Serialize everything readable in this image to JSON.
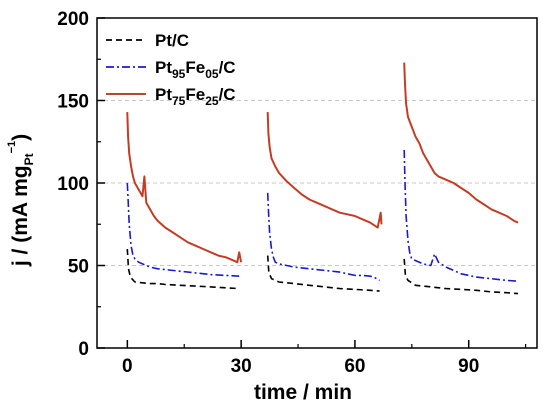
{
  "chart_data": {
    "type": "line",
    "xlabel": "time / min",
    "ylabel": {
      "main": "j / (mA mg",
      "sub": "Pt",
      "sup": "−1",
      "close": ")"
    },
    "xlim": [
      -8,
      108
    ],
    "ylim": [
      0,
      200
    ],
    "xticks": [
      0,
      30,
      60,
      90
    ],
    "yticks": [
      0,
      50,
      100,
      150,
      200
    ],
    "grid": "horizontal-dashed",
    "legend_position": "top-left",
    "legend": [
      {
        "id": "ptc",
        "parts": [
          {
            "t": "Pt/C"
          }
        ]
      },
      {
        "id": "pt95",
        "parts": [
          {
            "t": "Pt"
          },
          {
            "t": "95",
            "sub": true
          },
          {
            "t": "Fe"
          },
          {
            "t": "05",
            "sub": true
          },
          {
            "t": "/C"
          }
        ]
      },
      {
        "id": "pt75",
        "parts": [
          {
            "t": "Pt"
          },
          {
            "t": "75",
            "sub": true
          },
          {
            "t": "Fe"
          },
          {
            "t": "25",
            "sub": true
          },
          {
            "t": "/C"
          }
        ]
      }
    ],
    "series": [
      {
        "id": "ptc",
        "color": "#000000",
        "style": "dashed",
        "segments": [
          [
            [
              0,
              60
            ],
            [
              0.3,
              48
            ],
            [
              0.8,
              43
            ],
            [
              2,
              40
            ],
            [
              4,
              39.5
            ],
            [
              6,
              39
            ],
            [
              8,
              39
            ],
            [
              10,
              38.5
            ],
            [
              14,
              38
            ],
            [
              18,
              37.5
            ],
            [
              22,
              37
            ],
            [
              26,
              36.5
            ],
            [
              29.5,
              36
            ]
          ],
          [
            [
              37,
              56
            ],
            [
              37.3,
              46
            ],
            [
              38,
              42
            ],
            [
              40,
              40
            ],
            [
              44,
              39
            ],
            [
              48,
              38
            ],
            [
              52,
              37
            ],
            [
              56,
              36
            ],
            [
              60,
              35.5
            ],
            [
              64,
              35
            ],
            [
              66.5,
              34.5
            ]
          ],
          [
            [
              73,
              54
            ],
            [
              73.3,
              44
            ],
            [
              74,
              41
            ],
            [
              76,
              38
            ],
            [
              80,
              37
            ],
            [
              84,
              36
            ],
            [
              88,
              35.5
            ],
            [
              92,
              35
            ],
            [
              96,
              34
            ],
            [
              100,
              33.5
            ],
            [
              103,
              33
            ]
          ]
        ]
      },
      {
        "id": "pt95",
        "color": "#1a1acc",
        "style": "dashdot",
        "segments": [
          [
            [
              0,
              100
            ],
            [
              0.2,
              90
            ],
            [
              0.5,
              75
            ],
            [
              1,
              62
            ],
            [
              1.5,
              56
            ],
            [
              2,
              54
            ],
            [
              3,
              52
            ],
            [
              4,
              51
            ],
            [
              5,
              50
            ],
            [
              6,
              49
            ],
            [
              8,
              48
            ],
            [
              10,
              47.5
            ],
            [
              14,
              46.5
            ],
            [
              18,
              45.5
            ],
            [
              22,
              44.5
            ],
            [
              26,
              44
            ],
            [
              29.5,
              43.5
            ]
          ],
          [
            [
              37,
              94
            ],
            [
              37.2,
              84
            ],
            [
              37.5,
              70
            ],
            [
              38,
              60
            ],
            [
              38.5,
              55
            ],
            [
              39,
              52
            ],
            [
              40,
              51
            ],
            [
              42,
              50
            ],
            [
              44,
              49
            ],
            [
              48,
              48
            ],
            [
              52,
              47
            ],
            [
              56,
              46
            ],
            [
              58,
              45
            ],
            [
              60,
              44
            ],
            [
              62,
              44
            ],
            [
              64,
              43.5
            ],
            [
              65,
              43
            ],
            [
              66.5,
              41
            ]
          ],
          [
            [
              73,
              120
            ],
            [
              73.2,
              100
            ],
            [
              73.5,
              80
            ],
            [
              74,
              65
            ],
            [
              74.5,
              57
            ],
            [
              75,
              54
            ],
            [
              76,
              53
            ],
            [
              78,
              51
            ],
            [
              80,
              50
            ],
            [
              81,
              57
            ],
            [
              82,
              52
            ],
            [
              84,
              49
            ],
            [
              86,
              47
            ],
            [
              88,
              45
            ],
            [
              90,
              44
            ],
            [
              92,
              43
            ],
            [
              96,
              42
            ],
            [
              100,
              41
            ],
            [
              103,
              40.5
            ]
          ]
        ]
      },
      {
        "id": "pt75",
        "color": "#b5492c",
        "style": "solid",
        "segments": [
          [
            [
              0,
              143
            ],
            [
              0.2,
              128
            ],
            [
              0.5,
              118
            ],
            [
              1,
              110
            ],
            [
              1.5,
              104
            ],
            [
              2,
              100
            ],
            [
              3,
              96
            ],
            [
              4,
              92
            ],
            [
              4.5,
              104
            ],
            [
              5,
              88
            ],
            [
              6,
              84
            ],
            [
              7,
              80
            ],
            [
              8,
              77
            ],
            [
              10,
              73
            ],
            [
              12,
              70
            ],
            [
              14,
              67
            ],
            [
              16,
              64
            ],
            [
              18,
              62
            ],
            [
              20,
              60
            ],
            [
              22,
              58
            ],
            [
              24,
              56
            ],
            [
              26,
              55
            ],
            [
              27,
              54
            ],
            [
              28,
              53
            ],
            [
              29,
              52
            ],
            [
              29.5,
              58
            ],
            [
              30,
              52
            ]
          ],
          [
            [
              37,
              143
            ],
            [
              37.2,
              130
            ],
            [
              37.5,
              122
            ],
            [
              38,
              115
            ],
            [
              39,
              110
            ],
            [
              40,
              106
            ],
            [
              42,
              101
            ],
            [
              44,
              97
            ],
            [
              46,
              93
            ],
            [
              48,
              90
            ],
            [
              50,
              88
            ],
            [
              52,
              86
            ],
            [
              54,
              84
            ],
            [
              56,
              82
            ],
            [
              58,
              81
            ],
            [
              60,
              80
            ],
            [
              62,
              78
            ],
            [
              64,
              76
            ],
            [
              66,
              73
            ],
            [
              66.8,
              82
            ],
            [
              67,
              75
            ]
          ],
          [
            [
              73,
              173
            ],
            [
              73.2,
              160
            ],
            [
              73.5,
              148
            ],
            [
              74,
              140
            ],
            [
              75,
              134
            ],
            [
              76,
              128
            ],
            [
              77,
              124
            ],
            [
              78,
              118
            ],
            [
              79,
              114
            ],
            [
              80,
              110
            ],
            [
              81,
              106
            ],
            [
              82,
              104
            ],
            [
              84,
              102
            ],
            [
              86,
              100
            ],
            [
              88,
              97
            ],
            [
              90,
              94
            ],
            [
              92,
              90
            ],
            [
              94,
              87
            ],
            [
              96,
              84
            ],
            [
              98,
              82
            ],
            [
              100,
              80
            ],
            [
              102,
              77
            ],
            [
              103,
              76
            ]
          ]
        ]
      }
    ]
  }
}
